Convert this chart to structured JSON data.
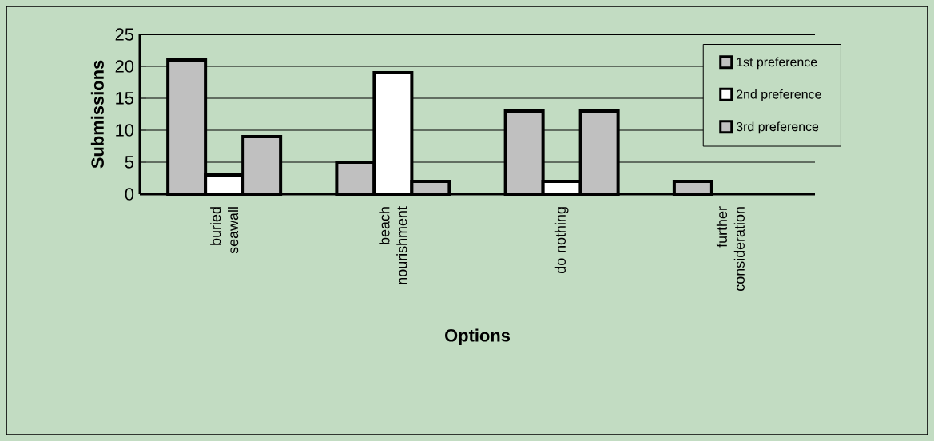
{
  "chart_data": {
    "type": "bar",
    "xlabel": "Options",
    "ylabel": "Submissions",
    "categories": [
      "buried seawall",
      "beach nourishment",
      "do nothing",
      "further consideration"
    ],
    "series": [
      {
        "name": "1st preference",
        "color": "#c0c0c0",
        "values": [
          21,
          5,
          13,
          2
        ]
      },
      {
        "name": "2nd preference",
        "color": "#ffffff",
        "values": [
          3,
          19,
          2,
          null
        ]
      },
      {
        "name": "3rd preference",
        "color": "#c0c0c0",
        "values": [
          9,
          2,
          13,
          null
        ]
      }
    ],
    "ylim": [
      0,
      25
    ],
    "yticks": [
      0,
      5,
      10,
      15,
      20,
      25
    ],
    "grid": "y",
    "legend": "top right"
  }
}
